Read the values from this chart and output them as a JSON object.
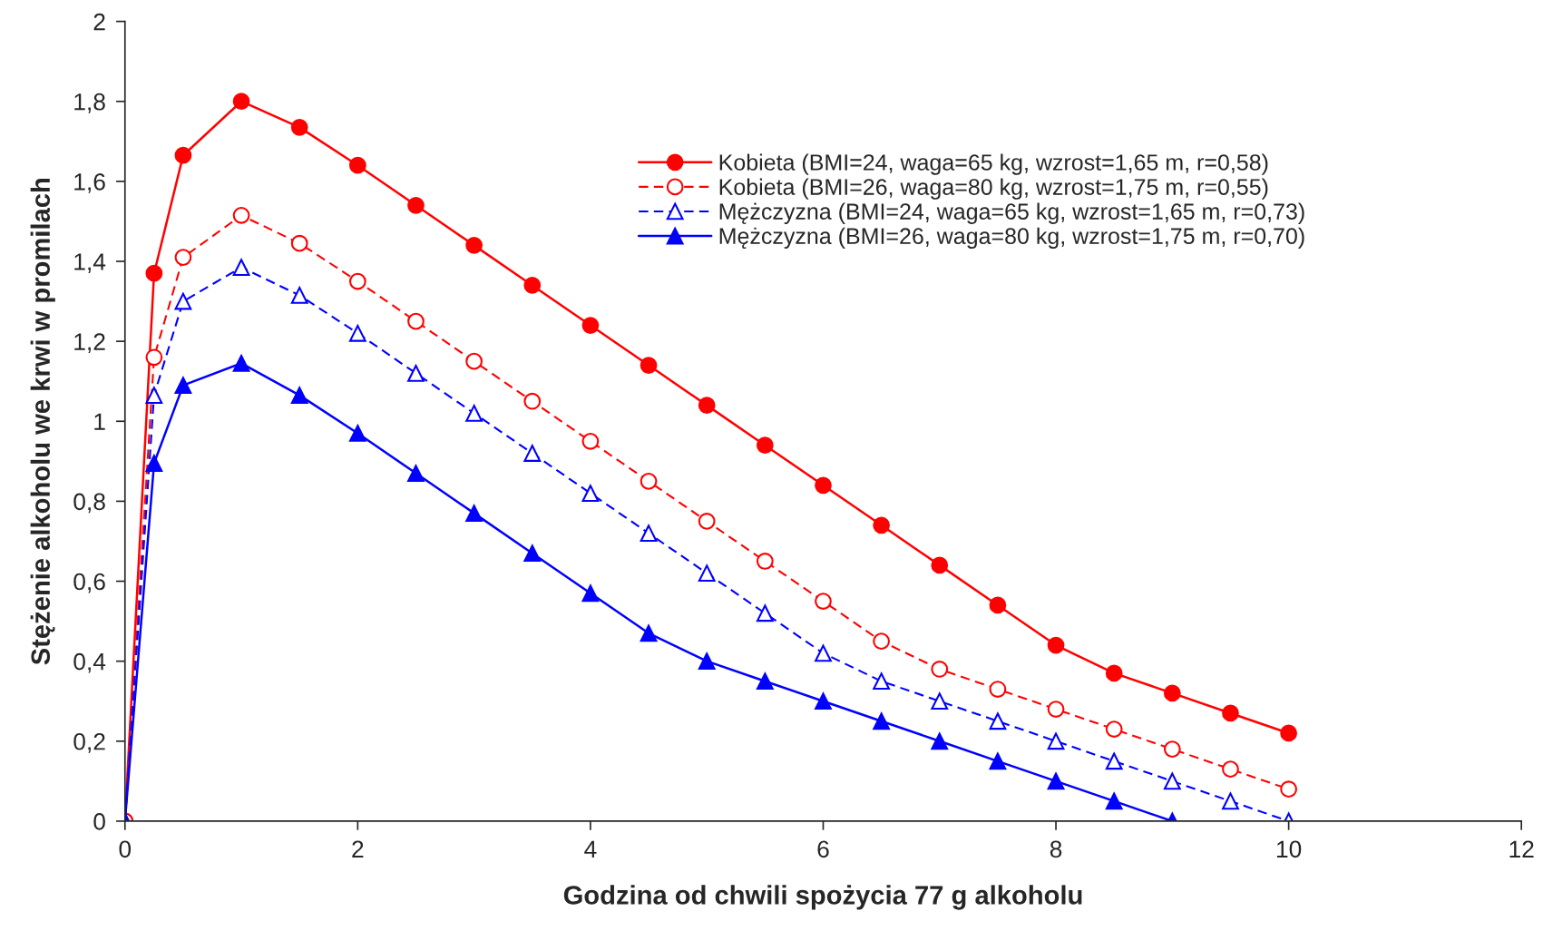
{
  "chart_data": {
    "type": "line",
    "xlabel": "Godzina od chwili spożycia 77 g alkoholu",
    "ylabel": "Stężenie alkoholu we krwi w promilach",
    "xlim": [
      0,
      12
    ],
    "xticks": [
      0,
      2,
      4,
      6,
      8,
      10,
      12
    ],
    "ylim": [
      0,
      2
    ],
    "yticks": [
      0,
      {
        "value": 0.2,
        "label": "0,2"
      },
      {
        "value": 0.4,
        "label": "0,4"
      },
      {
        "value": 0.6,
        "label": "0,6"
      },
      {
        "value": 0.8,
        "label": "0,8"
      },
      1,
      {
        "value": 1.2,
        "label": "1,2"
      },
      {
        "value": 1.4,
        "label": "1,4"
      },
      {
        "value": 1.6,
        "label": "1,6"
      },
      {
        "value": 1.8,
        "label": "1,8"
      },
      2
    ],
    "grid": false,
    "legend": "top right",
    "x": [
      0,
      0.25,
      0.5,
      1,
      1.5,
      2,
      2.5,
      3,
      3.5,
      4,
      4.5,
      5,
      5.5,
      6,
      6.5,
      7,
      7.5,
      8,
      8.5,
      9,
      9.5,
      10
    ],
    "series": [
      {
        "name": "Kobieta (BMI=24, waga=65 kg, wzrost=1,65 m, r=0,58)",
        "color": "#ff0000",
        "marker": "circle",
        "line_style": "solid",
        "values": [
          0,
          1.37,
          1.665,
          1.8,
          1.735,
          1.64,
          1.54,
          1.44,
          1.34,
          1.24,
          1.14,
          1.04,
          0.94,
          0.84,
          0.74,
          0.64,
          0.54,
          0.44,
          0.37,
          0.32,
          0.27,
          0.22
        ]
      },
      {
        "name": "Kobieta (BMI=26, waga=80 kg, wzrost=1,75 m, r=0,55)",
        "color": "#ff0000",
        "marker": "circle",
        "line_style": "dashed",
        "values": [
          0,
          1.16,
          1.41,
          1.515,
          1.445,
          1.35,
          1.25,
          1.15,
          1.05,
          0.95,
          0.85,
          0.75,
          0.65,
          0.55,
          0.45,
          0.38,
          0.33,
          0.28,
          0.23,
          0.18,
          0.13,
          0.08
        ]
      },
      {
        "name": "Mężczyzna (BMI=24, waga=65 kg, wzrost=1,65 m, r=0,73)",
        "color": "#0000ff",
        "marker": "triangle",
        "line_style": "dashed",
        "values": [
          0,
          1.065,
          1.3,
          1.385,
          1.315,
          1.22,
          1.12,
          1.02,
          0.92,
          0.82,
          0.72,
          0.62,
          0.52,
          0.42,
          0.35,
          0.3,
          0.25,
          0.2,
          0.15,
          0.1,
          0.05,
          0
        ]
      },
      {
        "name": "Mężczyzna (BMI=26, waga=80 kg, wzrost=1,75 m, r=0,70)",
        "color": "#0000ff",
        "marker": "triangle",
        "line_style": "solid",
        "x": [
          0,
          0.25,
          0.5,
          1,
          1.5,
          2,
          2.5,
          3,
          3.5,
          4,
          4.5,
          5,
          5.5,
          6,
          6.5,
          7,
          7.5,
          8,
          8.5,
          9
        ],
        "values": [
          0,
          0.895,
          1.09,
          1.145,
          1.065,
          0.97,
          0.87,
          0.77,
          0.67,
          0.57,
          0.47,
          0.4,
          0.35,
          0.3,
          0.25,
          0.2,
          0.15,
          0.1,
          0.05,
          0
        ]
      }
    ]
  }
}
